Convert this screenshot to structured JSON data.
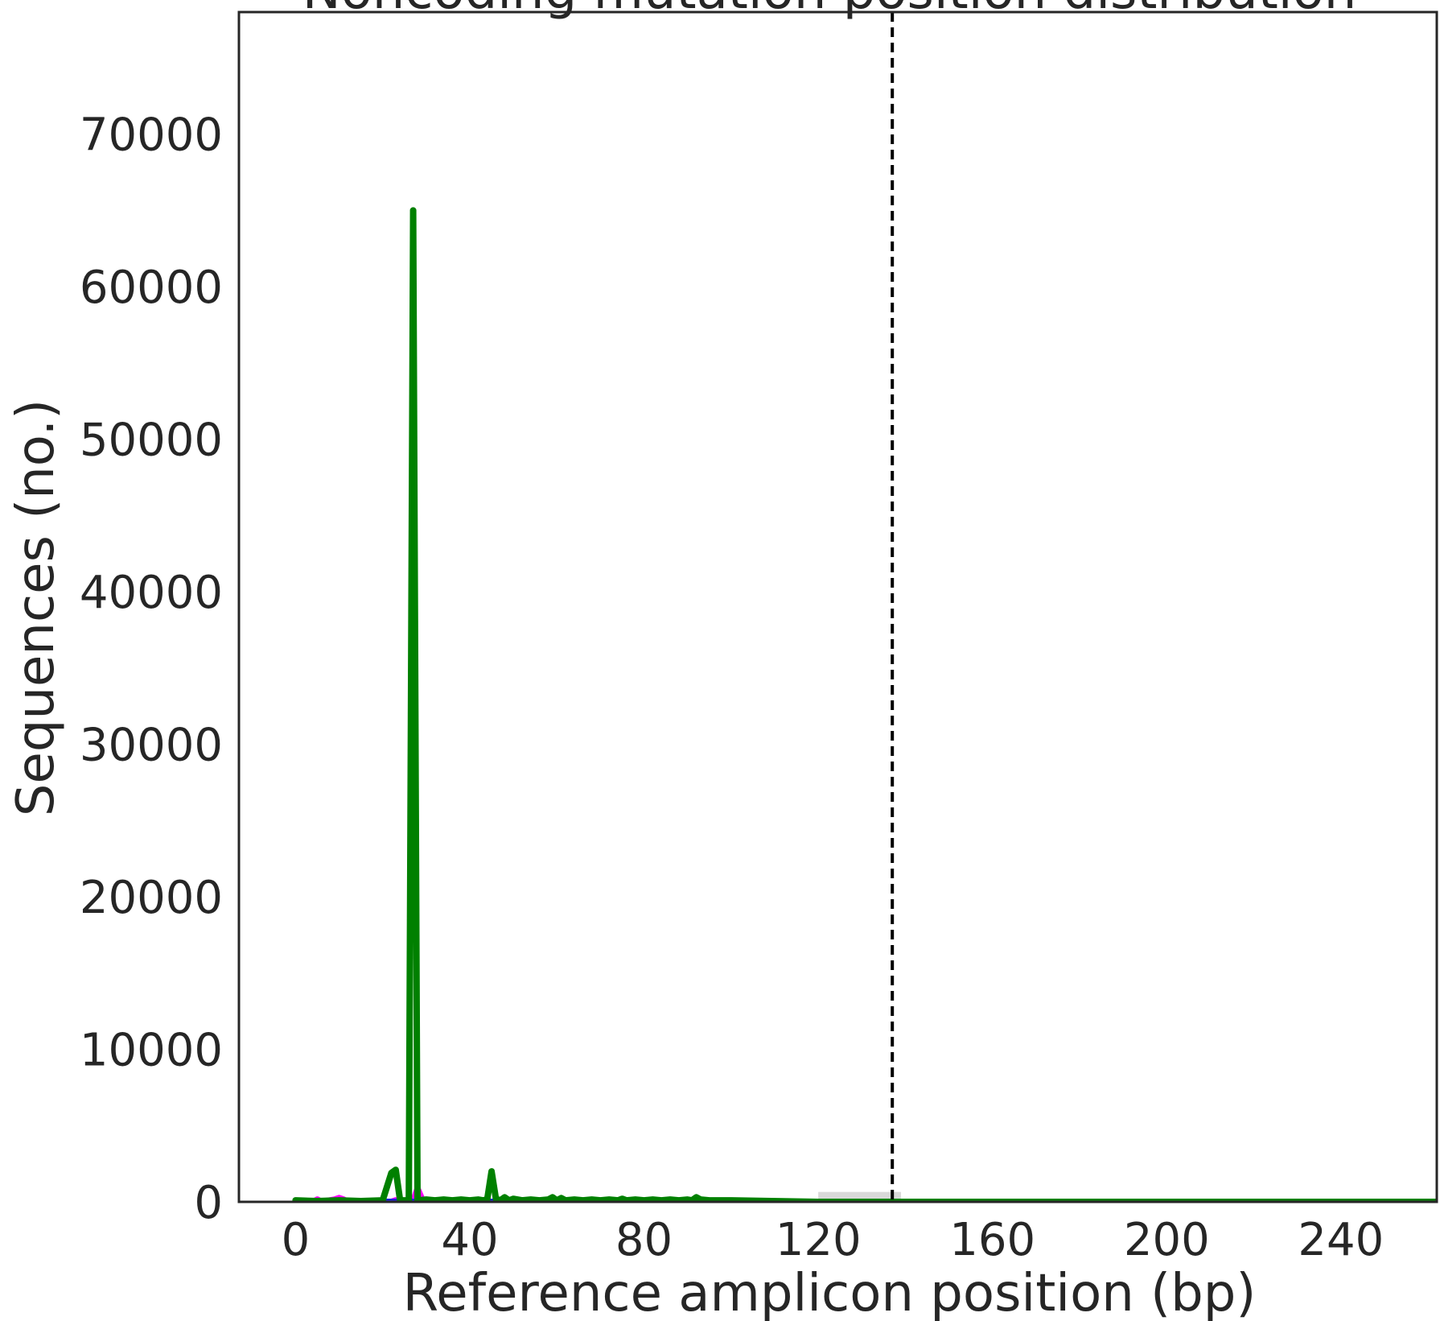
{
  "chart_data": {
    "type": "line",
    "title": "Noncoding mutation position distribution",
    "xlabel": "Reference amplicon position (bp)",
    "ylabel": "Sequences (no.)",
    "xlim": [
      -13,
      262
    ],
    "ylim": [
      0,
      78000
    ],
    "x_ticks": [
      0,
      40,
      80,
      120,
      160,
      200,
      240
    ],
    "y_ticks": [
      0,
      10000,
      20000,
      30000,
      40000,
      50000,
      60000,
      70000
    ],
    "x_tick_labels": [
      "0",
      "40",
      "80",
      "120",
      "160",
      "200",
      "240"
    ],
    "y_tick_labels": [
      "0",
      "10000",
      "20000",
      "30000",
      "40000",
      "50000",
      "60000",
      "70000"
    ],
    "grid": false,
    "vertical_line": {
      "x": 137,
      "style": "dashed",
      "color": "#000000"
    },
    "shaded_region": {
      "x_start": 120,
      "x_end": 139,
      "y_top": 650,
      "color": "#d9d9d9"
    },
    "colors": {
      "insertions": "#ff00ff",
      "deletions": "#1f1fd8",
      "substitutions": "#008000"
    },
    "series": [
      {
        "color": "#ff00ff",
        "points": [
          [
            0,
            0
          ],
          [
            4,
            0
          ],
          [
            5,
            150
          ],
          [
            6,
            0
          ],
          [
            9,
            150
          ],
          [
            10,
            250
          ],
          [
            11,
            150
          ],
          [
            12,
            0
          ],
          [
            18,
            0
          ],
          [
            22,
            0
          ],
          [
            23,
            100
          ],
          [
            24,
            0
          ],
          [
            27,
            0
          ],
          [
            28,
            850
          ],
          [
            29,
            200
          ],
          [
            30,
            0
          ],
          [
            100,
            0
          ]
        ]
      },
      {
        "color": "#1f1fd8",
        "points": [
          [
            0,
            0
          ],
          [
            10,
            0
          ],
          [
            20,
            0
          ],
          [
            40,
            0
          ],
          [
            60,
            0
          ],
          [
            100,
            0
          ]
        ]
      },
      {
        "color": "#008000",
        "points": [
          [
            0,
            100
          ],
          [
            5,
            50
          ],
          [
            10,
            100
          ],
          [
            15,
            50
          ],
          [
            20,
            100
          ],
          [
            22,
            1900
          ],
          [
            23,
            2100
          ],
          [
            24,
            100
          ],
          [
            26,
            100
          ],
          [
            27,
            65000
          ],
          [
            28,
            100
          ],
          [
            30,
            150
          ],
          [
            32,
            100
          ],
          [
            34,
            150
          ],
          [
            36,
            100
          ],
          [
            38,
            150
          ],
          [
            40,
            100
          ],
          [
            42,
            150
          ],
          [
            43,
            100
          ],
          [
            44,
            150
          ],
          [
            45,
            2000
          ],
          [
            46,
            200
          ],
          [
            47,
            100
          ],
          [
            48,
            300
          ],
          [
            49,
            100
          ],
          [
            50,
            200
          ],
          [
            52,
            100
          ],
          [
            54,
            150
          ],
          [
            56,
            100
          ],
          [
            58,
            150
          ],
          [
            59,
            300
          ],
          [
            60,
            100
          ],
          [
            61,
            250
          ],
          [
            62,
            100
          ],
          [
            64,
            150
          ],
          [
            66,
            100
          ],
          [
            68,
            150
          ],
          [
            70,
            100
          ],
          [
            72,
            150
          ],
          [
            74,
            100
          ],
          [
            75,
            200
          ],
          [
            76,
            100
          ],
          [
            78,
            150
          ],
          [
            80,
            100
          ],
          [
            82,
            150
          ],
          [
            84,
            100
          ],
          [
            86,
            150
          ],
          [
            88,
            100
          ],
          [
            90,
            150
          ],
          [
            91,
            100
          ],
          [
            92,
            300
          ],
          [
            93,
            150
          ],
          [
            95,
            100
          ],
          [
            100,
            100
          ],
          [
            120,
            0
          ],
          [
            262,
            0
          ]
        ]
      }
    ]
  }
}
